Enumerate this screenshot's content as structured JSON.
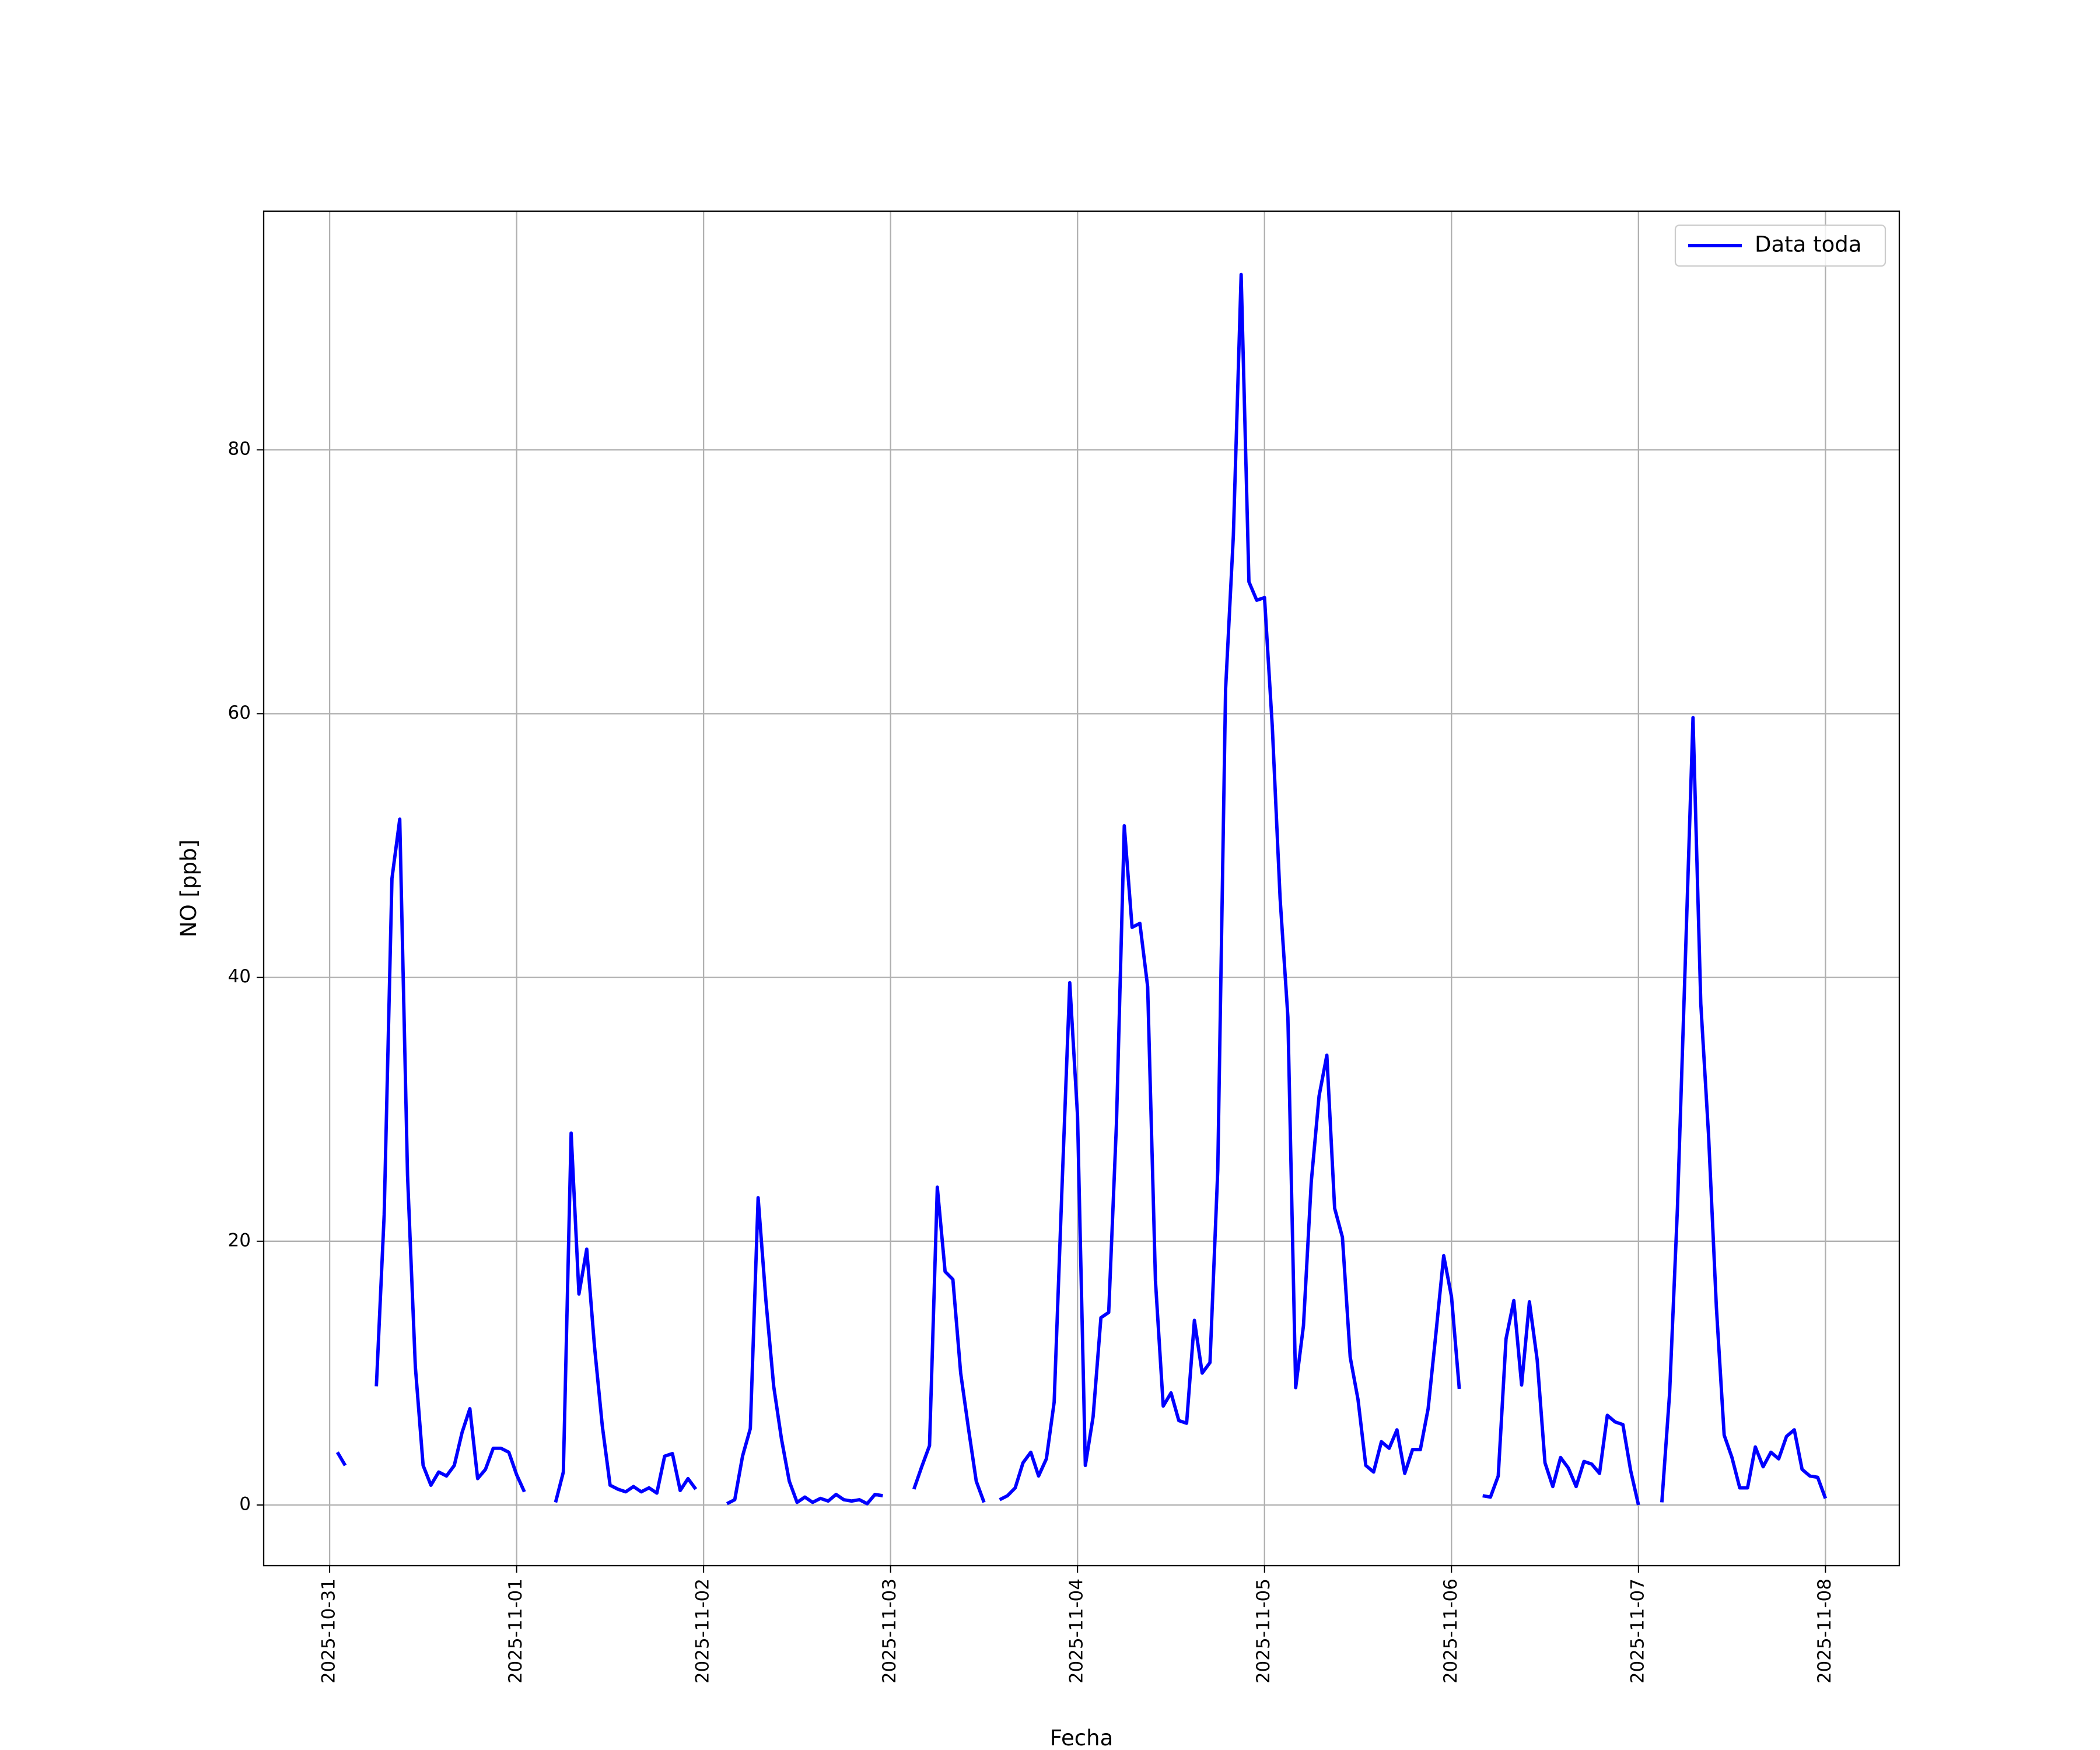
{
  "chart_data": {
    "type": "line",
    "xlabel": "Fecha",
    "ylabel": "NO [ppb]",
    "x": [
      "2025-10-31 01:00",
      "2025-10-31 02:00",
      "2025-10-31 03:00",
      "2025-10-31 04:00",
      "2025-10-31 05:00",
      "2025-10-31 06:00",
      "2025-10-31 07:00",
      "2025-10-31 08:00",
      "2025-10-31 09:00",
      "2025-10-31 10:00",
      "2025-10-31 11:00",
      "2025-10-31 12:00",
      "2025-10-31 13:00",
      "2025-10-31 14:00",
      "2025-10-31 15:00",
      "2025-10-31 16:00",
      "2025-10-31 17:00",
      "2025-10-31 18:00",
      "2025-10-31 19:00",
      "2025-10-31 20:00",
      "2025-10-31 21:00",
      "2025-10-31 22:00",
      "2025-10-31 23:00",
      "2025-11-01 00:00",
      "2025-11-01 01:00",
      "2025-11-01 02:00",
      "2025-11-01 03:00",
      "2025-11-01 04:00",
      "2025-11-01 05:00",
      "2025-11-01 06:00",
      "2025-11-01 07:00",
      "2025-11-01 08:00",
      "2025-11-01 09:00",
      "2025-11-01 10:00",
      "2025-11-01 11:00",
      "2025-11-01 12:00",
      "2025-11-01 13:00",
      "2025-11-01 14:00",
      "2025-11-01 15:00",
      "2025-11-01 16:00",
      "2025-11-01 17:00",
      "2025-11-01 18:00",
      "2025-11-01 19:00",
      "2025-11-01 20:00",
      "2025-11-01 21:00",
      "2025-11-01 22:00",
      "2025-11-01 23:00",
      "2025-11-02 00:00",
      "2025-11-02 01:00",
      "2025-11-02 02:00",
      "2025-11-02 03:00",
      "2025-11-02 04:00",
      "2025-11-02 05:00",
      "2025-11-02 06:00",
      "2025-11-02 07:00",
      "2025-11-02 08:00",
      "2025-11-02 09:00",
      "2025-11-02 10:00",
      "2025-11-02 11:00",
      "2025-11-02 12:00",
      "2025-11-02 13:00",
      "2025-11-02 14:00",
      "2025-11-02 15:00",
      "2025-11-02 16:00",
      "2025-11-02 17:00",
      "2025-11-02 18:00",
      "2025-11-02 19:00",
      "2025-11-02 20:00",
      "2025-11-02 21:00",
      "2025-11-02 22:00",
      "2025-11-02 23:00",
      "2025-11-03 00:00",
      "2025-11-03 01:00",
      "2025-11-03 02:00",
      "2025-11-03 03:00",
      "2025-11-03 04:00",
      "2025-11-03 05:00",
      "2025-11-03 06:00",
      "2025-11-03 07:00",
      "2025-11-03 08:00",
      "2025-11-03 09:00",
      "2025-11-03 10:00",
      "2025-11-03 11:00",
      "2025-11-03 12:00",
      "2025-11-03 13:00",
      "2025-11-03 14:00",
      "2025-11-03 15:00",
      "2025-11-03 16:00",
      "2025-11-03 17:00",
      "2025-11-03 18:00",
      "2025-11-03 19:00",
      "2025-11-03 20:00",
      "2025-11-03 21:00",
      "2025-11-03 22:00",
      "2025-11-03 23:00",
      "2025-11-04 00:00",
      "2025-11-04 01:00",
      "2025-11-04 02:00",
      "2025-11-04 03:00",
      "2025-11-04 04:00",
      "2025-11-04 05:00",
      "2025-11-04 06:00",
      "2025-11-04 07:00",
      "2025-11-04 08:00",
      "2025-11-04 09:00",
      "2025-11-04 10:00",
      "2025-11-04 11:00",
      "2025-11-04 12:00",
      "2025-11-04 13:00",
      "2025-11-04 14:00",
      "2025-11-04 15:00",
      "2025-11-04 16:00",
      "2025-11-04 17:00",
      "2025-11-04 18:00",
      "2025-11-04 19:00",
      "2025-11-04 20:00",
      "2025-11-04 21:00",
      "2025-11-04 22:00",
      "2025-11-04 23:00",
      "2025-11-05 00:00",
      "2025-11-05 01:00",
      "2025-11-05 02:00",
      "2025-11-05 03:00",
      "2025-11-05 04:00",
      "2025-11-05 05:00",
      "2025-11-05 06:00",
      "2025-11-05 07:00",
      "2025-11-05 08:00",
      "2025-11-05 09:00",
      "2025-11-05 10:00",
      "2025-11-05 11:00",
      "2025-11-05 12:00",
      "2025-11-05 13:00",
      "2025-11-05 14:00",
      "2025-11-05 15:00",
      "2025-11-05 16:00",
      "2025-11-05 17:00",
      "2025-11-05 18:00",
      "2025-11-05 19:00",
      "2025-11-05 20:00",
      "2025-11-05 21:00",
      "2025-11-05 22:00",
      "2025-11-05 23:00",
      "2025-11-06 00:00",
      "2025-11-06 01:00",
      "2025-11-06 02:00",
      "2025-11-06 03:00",
      "2025-11-06 04:00",
      "2025-11-06 05:00",
      "2025-11-06 06:00",
      "2025-11-06 07:00",
      "2025-11-06 08:00",
      "2025-11-06 09:00",
      "2025-11-06 10:00",
      "2025-11-06 11:00",
      "2025-11-06 12:00",
      "2025-11-06 13:00",
      "2025-11-06 14:00",
      "2025-11-06 15:00",
      "2025-11-06 16:00",
      "2025-11-06 17:00",
      "2025-11-06 18:00",
      "2025-11-06 19:00",
      "2025-11-06 20:00",
      "2025-11-06 21:00",
      "2025-11-06 22:00",
      "2025-11-06 23:00",
      "2025-11-07 00:00",
      "2025-11-07 01:00",
      "2025-11-07 02:00",
      "2025-11-07 03:00",
      "2025-11-07 04:00",
      "2025-11-07 05:00",
      "2025-11-07 06:00",
      "2025-11-07 07:00",
      "2025-11-07 08:00",
      "2025-11-07 09:00",
      "2025-11-07 10:00",
      "2025-11-07 11:00",
      "2025-11-07 12:00",
      "2025-11-07 13:00",
      "2025-11-07 14:00",
      "2025-11-07 15:00",
      "2025-11-07 16:00",
      "2025-11-07 17:00",
      "2025-11-07 18:00",
      "2025-11-07 19:00",
      "2025-11-07 20:00",
      "2025-11-07 21:00",
      "2025-11-07 22:00",
      "2025-11-07 23:00",
      "2025-11-08 00:00"
    ],
    "series": [
      {
        "name": "Data toda",
        "color": "#0000ff",
        "values": [
          4.0,
          3.0,
          null,
          null,
          null,
          9.0,
          22,
          47.5,
          52,
          25,
          10.5,
          3.0,
          1.5,
          2.5,
          2.2,
          3.0,
          5.5,
          7.3,
          2.0,
          2.7,
          4.3,
          4.3,
          4.0,
          2.3,
          1.0,
          null,
          null,
          null,
          0.2,
          2.5,
          28.2,
          16,
          19.4,
          12,
          6,
          1.5,
          1.2,
          1.0,
          1.4,
          1.0,
          1.3,
          0.9,
          3.7,
          3.9,
          1.1,
          2.0,
          1.2,
          null,
          null,
          null,
          0.1,
          0.4,
          3.7,
          5.8,
          23.3,
          15.5,
          9,
          5,
          1.8,
          0.2,
          0.6,
          0.2,
          0.5,
          0.3,
          0.8,
          0.4,
          0.3,
          0.4,
          0.1,
          0.8,
          0.7,
          null,
          null,
          null,
          1.2,
          2.9,
          4.5,
          24.1,
          17.7,
          17.1,
          10,
          5.8,
          1.8,
          0.2,
          null,
          0.4,
          0.7,
          1.3,
          3.2,
          4.0,
          2.2,
          3.5,
          7.8,
          24,
          39.6,
          29.5,
          3.0,
          6.7,
          14.2,
          14.6,
          29,
          51.5,
          43.8,
          44.1,
          39.3,
          17,
          7.5,
          8.5,
          6.4,
          6.2,
          14,
          10,
          10.8,
          25.4,
          61.8,
          73.5,
          93.3,
          70,
          68.6,
          68.8,
          59,
          46,
          37,
          8.9,
          13.6,
          24.5,
          31,
          34.1,
          22.5,
          20.3,
          11.2,
          8,
          3,
          2.5,
          4.8,
          4.3,
          5.7,
          2.4,
          4.2,
          4.2,
          7.3,
          13,
          18.9,
          15.8,
          8.8,
          null,
          null,
          0.7,
          0.6,
          2.2,
          12.6,
          15.5,
          9.1,
          15.4,
          11,
          3.2,
          1.4,
          3.6,
          2.8,
          1.4,
          3.3,
          3.1,
          2.4,
          6.8,
          6.3,
          6.1,
          2.6,
          0.0,
          null,
          null,
          0.2,
          8.5,
          22.5,
          41,
          59.7,
          38,
          28,
          15,
          5.3,
          3.6,
          1.3,
          1.3,
          4.4,
          2.9,
          4.0,
          3.5,
          5.2,
          5.7,
          2.7,
          2.2,
          2.1,
          0.5
        ]
      }
    ],
    "xlim": [
      "2025-10-30 15:32",
      "2025-11-08 09:29"
    ],
    "xticks": [
      "2025-10-31",
      "2025-11-01",
      "2025-11-02",
      "2025-11-03",
      "2025-11-04",
      "2025-11-05",
      "2025-11-06",
      "2025-11-07",
      "2025-11-08"
    ],
    "ylim": [
      -4.6,
      98.1
    ],
    "yticks": [
      0,
      20,
      40,
      60,
      80
    ],
    "grid": true,
    "legend": "upper right"
  }
}
